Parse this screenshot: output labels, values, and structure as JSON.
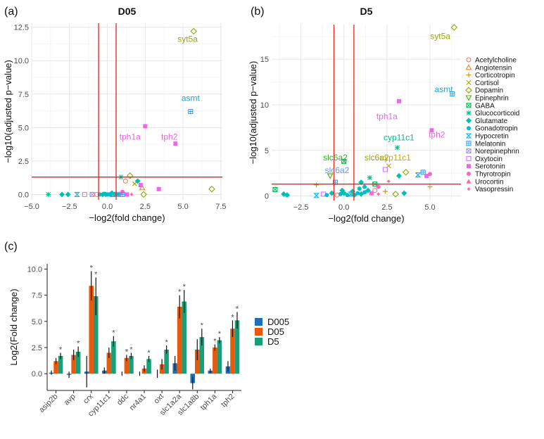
{
  "panel_labels": {
    "a": "(a)",
    "b": "(b)",
    "c": "(c)"
  },
  "chart_data": [
    {
      "type": "scatter",
      "panel": "(a)",
      "title": "D05",
      "xlabel": "−log2(fold change)",
      "ylabel": "−log10(adjusted p−value)",
      "xlim": [
        -5,
        7.6
      ],
      "ylim": [
        -0.4,
        12.8
      ],
      "xticks": [
        -5.0,
        -2.5,
        0.0,
        2.5,
        5.0,
        7.5
      ],
      "xtick_labels": [
        "−5.0",
        "−2.5",
        "0.0",
        "2.5",
        "5.0",
        "7.5"
      ],
      "yticks": [
        0.0,
        2.5,
        5.0,
        7.5,
        10.0,
        12.5
      ],
      "ytick_labels": [
        "0.0",
        "2.5",
        "5.0",
        "7.5",
        "10.0",
        "12.5"
      ],
      "grid": true,
      "thresholds": {
        "vlines": [
          -0.58,
          0.58
        ],
        "hline": 1.3
      },
      "gene_labels": [
        {
          "text": "syt5a",
          "x": 5.3,
          "y": 11.4,
          "color": "#9aa60f"
        },
        {
          "text": "asmt",
          "x": 5.5,
          "y": 7.0,
          "color": "#00b0e0"
        },
        {
          "text": "tph1a",
          "x": 1.5,
          "y": 4.1,
          "color": "#e865e0"
        },
        {
          "text": "tph2",
          "x": 4.1,
          "y": 4.1,
          "color": "#e865e0"
        }
      ],
      "points": [
        {
          "x": 5.7,
          "y": 12.2,
          "group": "Dopamin"
        },
        {
          "x": 5.5,
          "y": 6.2,
          "group": "Melatonin"
        },
        {
          "x": 2.5,
          "y": 5.1,
          "group": "Serotonin"
        },
        {
          "x": 4.5,
          "y": 3.8,
          "group": "Serotonin"
        },
        {
          "x": 6.9,
          "y": 0.4,
          "group": "Dopamin"
        },
        {
          "x": 2.3,
          "y": 0.5,
          "group": "Angiotensin"
        },
        {
          "x": 3.4,
          "y": 0.4,
          "group": "Serotonin"
        },
        {
          "x": 1.5,
          "y": 1.4,
          "group": "Dopamin"
        },
        {
          "x": 0.9,
          "y": 1.3,
          "group": "Glucocorticoid"
        },
        {
          "x": 1.8,
          "y": 0.8,
          "group": "Cortisol"
        },
        {
          "x": 1.2,
          "y": 1.0,
          "group": "Acetylcholine"
        },
        {
          "x": 2.0,
          "y": 1.0,
          "group": "Glutamate"
        },
        {
          "x": 2.2,
          "y": 0.7,
          "group": "Serotonin"
        },
        {
          "x": 1.0,
          "y": 0.2,
          "group": "Thyrotropin"
        },
        {
          "x": 0.3,
          "y": 0.1,
          "group": "Glutamate"
        },
        {
          "x": -0.2,
          "y": 0.05,
          "group": "Gonadotropin"
        },
        {
          "x": 0.6,
          "y": 0.1,
          "group": "Corticotropin"
        },
        {
          "x": -3.9,
          "y": 0.0,
          "group": "Glucocorticoid"
        },
        {
          "x": -3.0,
          "y": 0.0,
          "group": "Glutamate"
        },
        {
          "x": -2.6,
          "y": 0.0,
          "group": "Glutamate"
        },
        {
          "x": -2.0,
          "y": 0.0,
          "group": "Hypocretin"
        },
        {
          "x": -1.5,
          "y": 0.0,
          "group": "Oxytocin"
        },
        {
          "x": -1.0,
          "y": 0.0,
          "group": "Norepinephrin"
        },
        {
          "x": -0.7,
          "y": 0.0,
          "group": "Acetylcholine"
        },
        {
          "x": -0.5,
          "y": 0.0,
          "group": "Gonadotropin"
        },
        {
          "x": -0.3,
          "y": 0.0,
          "group": "Glutamate"
        },
        {
          "x": 0.0,
          "y": 0.0,
          "group": "Gonadotropin"
        },
        {
          "x": 0.2,
          "y": 0.0,
          "group": "Glutamate"
        },
        {
          "x": 0.4,
          "y": 0.0,
          "group": "Hypocretin"
        },
        {
          "x": 0.6,
          "y": 0.0,
          "group": "Gonadotropin"
        },
        {
          "x": 0.8,
          "y": 0.0,
          "group": "Glutamate"
        },
        {
          "x": 1.0,
          "y": 0.0,
          "group": "Melatonin"
        },
        {
          "x": 1.3,
          "y": 0.0,
          "group": "Serotonin"
        },
        {
          "x": 1.6,
          "y": 0.0,
          "group": "Vasopressin"
        },
        {
          "x": 2.4,
          "y": 0.0,
          "group": "Dopamin"
        },
        {
          "x": -0.1,
          "y": 0.0,
          "group": "Glutamate"
        },
        {
          "x": 0.1,
          "y": 0.0,
          "group": "Gonadotropin"
        },
        {
          "x": 0.5,
          "y": 0.0,
          "group": "Glutamate"
        },
        {
          "x": 0.7,
          "y": 0.0,
          "group": "Oxytocin"
        }
      ]
    },
    {
      "type": "scatter",
      "panel": "(b)",
      "title": "D5",
      "xlabel": "−log2(fold change)",
      "ylabel": "−log10(adjusted p−value)",
      "xlim": [
        -4.2,
        6.8
      ],
      "ylim": [
        -0.5,
        18.8
      ],
      "xticks": [
        -2.5,
        0.0,
        2.5,
        5.0
      ],
      "xtick_labels": [
        "−2.5",
        "0.0",
        "2.5",
        "5.0"
      ],
      "yticks": [
        0,
        5,
        10,
        15
      ],
      "ytick_labels": [
        "0",
        "5",
        "10",
        "15"
      ],
      "grid": true,
      "thresholds": {
        "vlines": [
          -0.58,
          0.58
        ],
        "hline": 1.3
      },
      "gene_labels": [
        {
          "text": "syt5a",
          "x": 5.6,
          "y": 17.2,
          "color": "#9aa60f"
        },
        {
          "text": "asmt",
          "x": 5.8,
          "y": 11.4,
          "color": "#00b0e0"
        },
        {
          "text": "tph1a",
          "x": 2.5,
          "y": 8.4,
          "color": "#e865e0"
        },
        {
          "text": "tph2",
          "x": 5.4,
          "y": 6.4,
          "color": "#e865e0"
        },
        {
          "text": "cyp11c1",
          "x": 3.2,
          "y": 6.1,
          "color": "#00c08b"
        },
        {
          "text": "slc6a2",
          "x": -0.5,
          "y": 3.9,
          "color": "#3aa335"
        },
        {
          "text": "slc6a2",
          "x": 1.9,
          "y": 3.9,
          "color": "#9aa60f"
        },
        {
          "text": "cyp11c1",
          "x": 3.0,
          "y": 3.9,
          "color": "#c9a21a"
        },
        {
          "text": "slc6a2",
          "x": -0.4,
          "y": 2.5,
          "color": "#6b93e8"
        }
      ],
      "points": [
        {
          "x": 6.4,
          "y": 18.5,
          "group": "Dopamin"
        },
        {
          "x": 6.3,
          "y": 11.2,
          "group": "Melatonin"
        },
        {
          "x": 3.2,
          "y": 10.4,
          "group": "Serotonin"
        },
        {
          "x": 5.1,
          "y": 7.2,
          "group": "Serotonin"
        },
        {
          "x": 3.1,
          "y": 5.3,
          "group": "Glucocorticoid"
        },
        {
          "x": 0.0,
          "y": 3.8,
          "group": "GABA"
        },
        {
          "x": 2.6,
          "y": 3.3,
          "group": "Cortisol"
        },
        {
          "x": 3.6,
          "y": 2.6,
          "group": "Dopamin"
        },
        {
          "x": 2.4,
          "y": 2.9,
          "group": "Oxytocin"
        },
        {
          "x": 4.6,
          "y": 2.6,
          "group": "Melatonin"
        },
        {
          "x": 4.3,
          "y": 2.3,
          "group": "Hypocretin"
        },
        {
          "x": 4.8,
          "y": 2.2,
          "group": "Serotonin"
        },
        {
          "x": 5.0,
          "y": 2.4,
          "group": "Thyrotropin"
        },
        {
          "x": 3.2,
          "y": 2.2,
          "group": "Glutamate"
        },
        {
          "x": 2.6,
          "y": 1.6,
          "group": "Vasopressin"
        },
        {
          "x": 5.0,
          "y": 1.0,
          "group": "Corticotropin"
        },
        {
          "x": 3.0,
          "y": 0.2,
          "group": "Dopamin"
        },
        {
          "x": 3.5,
          "y": 0.3,
          "group": "Glutamate"
        },
        {
          "x": 2.4,
          "y": 0.5,
          "group": "Corticotropin"
        },
        {
          "x": -0.8,
          "y": 2.2,
          "group": "Epinephrin"
        },
        {
          "x": -1.6,
          "y": 1.2,
          "group": "Corticotropin"
        },
        {
          "x": -0.5,
          "y": 1.5,
          "group": "Melatonin"
        },
        {
          "x": 1.5,
          "y": 2.0,
          "group": "Glucocorticoid"
        },
        {
          "x": 1.0,
          "y": 1.5,
          "group": "Glutamate"
        },
        {
          "x": 1.8,
          "y": 1.3,
          "group": "GABA"
        },
        {
          "x": 1.2,
          "y": 1.0,
          "group": "Gonadotropin"
        },
        {
          "x": 2.0,
          "y": 1.0,
          "group": "Thyrotropin"
        },
        {
          "x": -4.0,
          "y": 0.7,
          "group": "GABA"
        },
        {
          "x": -3.5,
          "y": 0.2,
          "group": "Glutamate"
        },
        {
          "x": -3.3,
          "y": 0.1,
          "group": "Glutamate"
        },
        {
          "x": -1.6,
          "y": 0.05,
          "group": "Hypocretin"
        },
        {
          "x": -1.2,
          "y": 0.2,
          "group": "Oxytocin"
        },
        {
          "x": -1.0,
          "y": 0.1,
          "group": "Gonadotropin"
        },
        {
          "x": -0.7,
          "y": 0.3,
          "group": "Glutamate"
        },
        {
          "x": -0.4,
          "y": 0.1,
          "group": "Acetylcholine"
        },
        {
          "x": -0.2,
          "y": 0.2,
          "group": "Gonadotropin"
        },
        {
          "x": 0.0,
          "y": 0.3,
          "group": "Glutamate"
        },
        {
          "x": 0.2,
          "y": 0.1,
          "group": "Gonadotropin"
        },
        {
          "x": 0.4,
          "y": 0.2,
          "group": "Hypocretin"
        },
        {
          "x": 0.6,
          "y": 0.1,
          "group": "Glutamate"
        },
        {
          "x": 0.8,
          "y": 0.3,
          "group": "Gonadotropin"
        },
        {
          "x": 1.0,
          "y": 0.2,
          "group": "Glutamate"
        },
        {
          "x": 1.2,
          "y": 0.4,
          "group": "Gonadotropin"
        },
        {
          "x": 1.4,
          "y": 0.6,
          "group": "Glutamate"
        },
        {
          "x": 1.6,
          "y": 0.3,
          "group": "Serotonin"
        },
        {
          "x": 1.8,
          "y": 0.6,
          "group": "Acetylcholine"
        },
        {
          "x": 2.0,
          "y": 0.2,
          "group": "Vasopressin"
        },
        {
          "x": 0.5,
          "y": 0.5,
          "group": "Glutamate"
        },
        {
          "x": 0.9,
          "y": 0.8,
          "group": "Gonadotropin"
        },
        {
          "x": -0.1,
          "y": 0.6,
          "group": "Glutamate"
        }
      ],
      "legend": {
        "position": "right",
        "entries": [
          {
            "label": "Acetylcholine",
            "color": "#f8766d"
          },
          {
            "label": "Angiotensin",
            "color": "#e7851e"
          },
          {
            "label": "Corticotropin",
            "color": "#d09400"
          },
          {
            "label": "Cortisol",
            "color": "#b2a100"
          },
          {
            "label": "Dopamin",
            "color": "#89ac00"
          },
          {
            "label": "Epinephrin",
            "color": "#45b500"
          },
          {
            "label": "GABA",
            "color": "#00bc51"
          },
          {
            "label": "Glucocorticoid",
            "color": "#00c087"
          },
          {
            "label": "Glutamate",
            "color": "#00c0b2"
          },
          {
            "label": "Gonadotropin",
            "color": "#00bcd6"
          },
          {
            "label": "Hypocretin",
            "color": "#00b3f2"
          },
          {
            "label": "Melatonin",
            "color": "#29a3ff"
          },
          {
            "label": "Norepinephrin",
            "color": "#9c8dff"
          },
          {
            "label": "Oxytocin",
            "color": "#d277ff"
          },
          {
            "label": "Serotonin",
            "color": "#f166e8"
          },
          {
            "label": "Thyrotropin",
            "color": "#ff61c7"
          },
          {
            "label": "Urocortin",
            "color": "#ff689e"
          },
          {
            "label": "Vasopressin",
            "color": "#ff6c91"
          }
        ],
        "shapes": [
          "circle-open",
          "triangle-open",
          "plus",
          "cross",
          "diamond-open",
          "triangle-down-open",
          "square-cross",
          "asterisk",
          "diamond-filled",
          "circle-filled",
          "hourglass",
          "square-plus",
          "square-x",
          "square-open",
          "square-filled",
          "circle-filled",
          "triangle-filled",
          "diamond-small"
        ]
      }
    },
    {
      "type": "bar",
      "panel": "(c)",
      "title": "",
      "xlabel": "",
      "ylabel": "Log2(Fold change)",
      "ylim": [
        -1.6,
        10.5
      ],
      "yticks": [
        0.0,
        2.5,
        5.0,
        7.5,
        10.0
      ],
      "ytick_labels": [
        "0.0",
        "2.5",
        "5.0",
        "7.5",
        "10.0"
      ],
      "grid": false,
      "categories": [
        "asip2b",
        "avp",
        "crx",
        "cyp11c1",
        "ddc",
        "nr4a1",
        "oxt",
        "slc1a2a",
        "slc1a8b",
        "tph1a",
        "tph2"
      ],
      "series": [
        {
          "name": "D005",
          "color": "#1f6fb4",
          "values": [
            0.1,
            -0.1,
            0.2,
            0.3,
            0.0,
            0.0,
            0.0,
            1.0,
            -0.9,
            0.3,
            0.7
          ],
          "errors": [
            0.2,
            0.3,
            1.5,
            0.3,
            0.2,
            0.2,
            0.4,
            0.7,
            0.6,
            0.2,
            0.5
          ],
          "sig": [
            false,
            false,
            false,
            false,
            false,
            false,
            false,
            false,
            false,
            false,
            false
          ]
        },
        {
          "name": "D05",
          "color": "#e8590c",
          "values": [
            1.2,
            1.8,
            8.4,
            2.0,
            1.5,
            0.5,
            0.9,
            6.4,
            2.3,
            2.5,
            4.3
          ],
          "errors": [
            0.3,
            0.5,
            1.4,
            0.5,
            0.3,
            0.3,
            0.5,
            1.1,
            1.0,
            0.3,
            0.8
          ],
          "sig": [
            false,
            false,
            true,
            false,
            true,
            false,
            false,
            true,
            false,
            true,
            true
          ]
        },
        {
          "name": "D5",
          "color": "#1a9e77",
          "values": [
            1.7,
            2.1,
            7.4,
            3.1,
            1.7,
            1.4,
            2.3,
            6.9,
            3.5,
            3.2,
            5.1
          ],
          "errors": [
            0.3,
            0.5,
            1.8,
            0.5,
            0.3,
            0.3,
            0.4,
            1.1,
            0.8,
            0.3,
            0.8
          ],
          "sig": [
            true,
            true,
            true,
            true,
            true,
            true,
            true,
            true,
            true,
            true,
            true
          ]
        }
      ],
      "sig_marker": "*",
      "legend": {
        "position": "right"
      }
    }
  ]
}
